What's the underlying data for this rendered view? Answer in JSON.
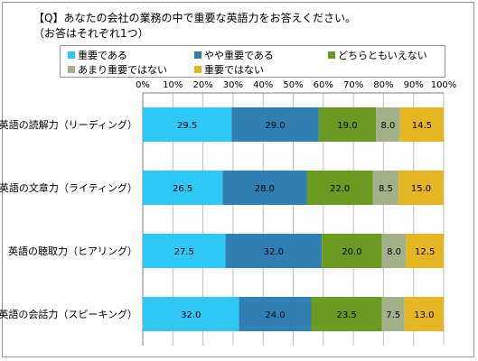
{
  "colors": {
    "frame": "#9a9a9a",
    "grid": "#bfbfbf",
    "axis": "#7f7f7f",
    "series": [
      "#2fc7f3",
      "#2f7fb5",
      "#6a9a1f",
      "#a3b18a",
      "#e6b522"
    ]
  },
  "chart_data": {
    "type": "bar",
    "orientation": "horizontal",
    "stacked": "percent",
    "title": "【Q】あなたの会社の業務の中で重要な英語力をお答えください。",
    "subtitle": "（お答はそれぞれ1つ）",
    "categories": [
      "英語の読解力（リーディング）",
      "英語の文章力（ライティング）",
      "英語の聴取力（ヒアリング）",
      "英語の会話力（スピーキング）"
    ],
    "series": [
      {
        "name": "重要である",
        "values": [
          29.5,
          26.5,
          27.5,
          32.0
        ]
      },
      {
        "name": "やや重要である",
        "values": [
          29.0,
          28.0,
          32.0,
          24.0
        ]
      },
      {
        "name": "どちらともいえない",
        "values": [
          19.0,
          22.0,
          20.0,
          23.5
        ]
      },
      {
        "name": "あまり重要ではない",
        "values": [
          8.0,
          8.5,
          8.0,
          7.5
        ]
      },
      {
        "name": "重要ではない",
        "values": [
          14.5,
          15.0,
          12.5,
          13.0
        ]
      }
    ],
    "x_ticks": [
      "0%",
      "10%",
      "20%",
      "30%",
      "40%",
      "50%",
      "60%",
      "70%",
      "80%",
      "90%",
      "100%"
    ],
    "xlim": [
      0,
      100
    ],
    "grid": true,
    "legend_position": "top"
  }
}
